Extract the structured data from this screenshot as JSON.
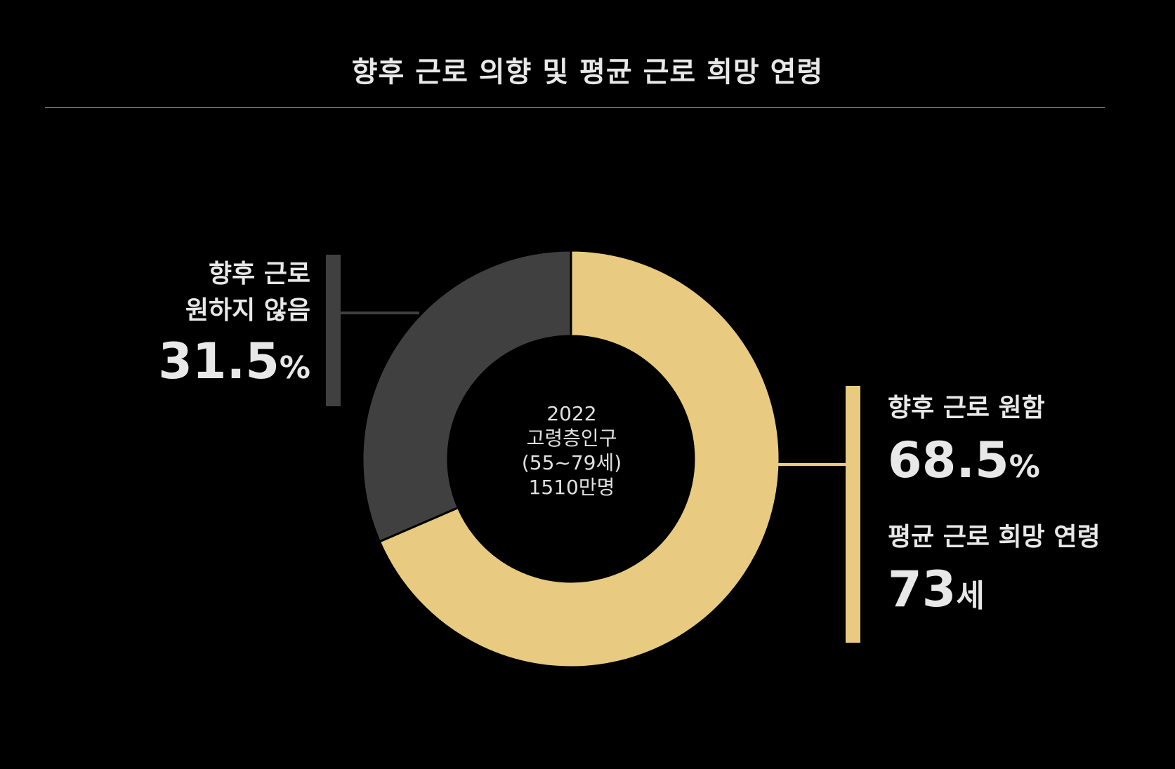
{
  "title": "향후 근로 의향 및 평균 근로 희망 연령",
  "center_label": [
    "2022",
    "고령층인구",
    "(55~79세)",
    "1510만명"
  ],
  "colors": {
    "background": "#000000",
    "positive": "#E8CB80",
    "negative": "#404040",
    "divider": "#8a8a8a"
  },
  "left_callout": {
    "label_line1": "향후 근로",
    "label_line2": "원하지 않음",
    "value": "31.5",
    "unit": "%"
  },
  "right_callout": {
    "label": "향후 근로 원함",
    "value": "68.5",
    "unit": "%",
    "age_label": "평균 근로 희망 연령",
    "age_value": "73",
    "age_unit": "세"
  },
  "chart_data": {
    "type": "pie",
    "title": "향후 근로 의향 및 평균 근로 희망 연령",
    "donut": true,
    "categories": [
      "향후 근로 원함",
      "향후 근로 원하지 않음"
    ],
    "values": [
      68.5,
      31.5
    ],
    "colors": [
      "#E8CB80",
      "#404040"
    ],
    "unit": "%",
    "annotations": [
      {
        "label": "평균 근로 희망 연령",
        "value": 73,
        "unit": "세"
      }
    ]
  }
}
